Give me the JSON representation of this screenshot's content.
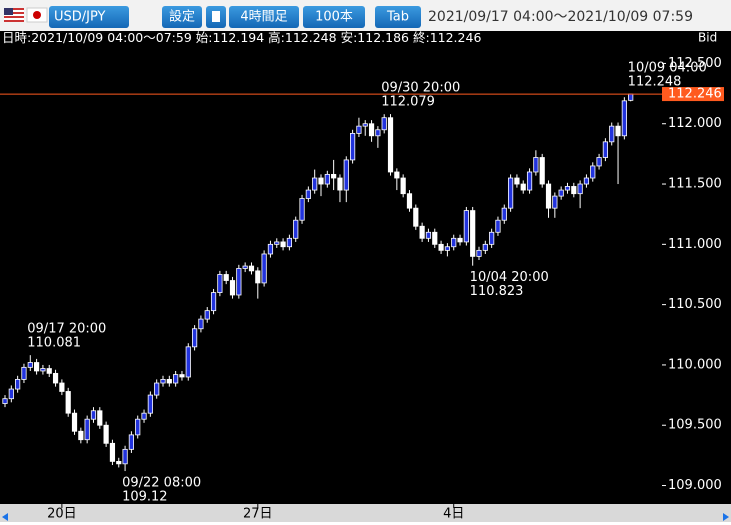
{
  "toolbar": {
    "pair": "USD/JPY",
    "settings": "設定",
    "timeframe": "4時間足",
    "count": "100本",
    "tab": "Tab",
    "range": "2021/09/17 04:00〜2021/10/09 07:59"
  },
  "info": {
    "datetime": "日時:2021/10/09 04:00〜07:59",
    "open_label": "始:",
    "high_label": "高:",
    "low_label": "安:",
    "close_label": "終:",
    "side": "Bid"
  },
  "chart_data": {
    "type": "candlestick",
    "categories": [
      null,
      null,
      null,
      null,
      null,
      null,
      null,
      null,
      null,
      "20日",
      null,
      null,
      null,
      null,
      null,
      null,
      null,
      null,
      null,
      null,
      null,
      null,
      null,
      null,
      null,
      null,
      null,
      null,
      null,
      null,
      null,
      null,
      null,
      null,
      null,
      null,
      null,
      null,
      null,
      null,
      "27日",
      null,
      null,
      null,
      null,
      null,
      null,
      null,
      null,
      null,
      null,
      null,
      null,
      null,
      null,
      null,
      null,
      null,
      null,
      null,
      null,
      null,
      null,
      null,
      null,
      null,
      null,
      null,
      null,
      null,
      null,
      "4日",
      null,
      null,
      null,
      null,
      null,
      null,
      null,
      null,
      null,
      null,
      null,
      null,
      null,
      null,
      null,
      null,
      null,
      null,
      null,
      null,
      null,
      null,
      null,
      null,
      null,
      null,
      null,
      null
    ],
    "open": [
      109.68,
      109.72,
      109.8,
      109.88,
      109.98,
      110.02,
      109.95,
      109.97,
      109.93,
      109.85,
      109.78,
      109.6,
      109.45,
      109.38,
      109.55,
      109.62,
      109.5,
      109.35,
      109.2,
      109.18,
      109.3,
      109.42,
      109.55,
      109.6,
      109.75,
      109.85,
      109.88,
      109.85,
      109.92,
      109.9,
      110.15,
      110.3,
      110.38,
      110.45,
      110.6,
      110.75,
      110.7,
      110.58,
      110.8,
      110.82,
      110.78,
      110.68,
      110.92,
      111.0,
      111.02,
      110.98,
      111.05,
      111.2,
      111.38,
      111.45,
      111.55,
      111.5,
      111.58,
      111.55,
      111.45,
      111.7,
      111.92,
      111.98,
      112.0,
      111.9,
      111.95,
      112.05,
      111.6,
      111.55,
      111.42,
      111.3,
      111.15,
      111.05,
      111.1,
      111.0,
      110.95,
      110.98,
      111.05,
      111.02,
      111.28,
      110.9,
      110.95,
      111.0,
      111.1,
      111.2,
      111.3,
      111.55,
      111.5,
      111.45,
      111.6,
      111.72,
      111.5,
      111.3,
      111.4,
      111.45,
      111.48,
      111.42,
      111.5,
      111.55,
      111.65,
      111.72,
      111.85,
      111.98,
      111.9,
      112.194
    ],
    "high": [
      109.75,
      109.83,
      109.91,
      110.01,
      110.081,
      110.05,
      110.0,
      110.0,
      109.96,
      109.88,
      109.81,
      109.63,
      109.48,
      109.58,
      109.65,
      109.65,
      109.53,
      109.38,
      109.23,
      109.33,
      109.45,
      109.58,
      109.63,
      109.78,
      109.88,
      109.91,
      109.91,
      109.95,
      109.95,
      110.18,
      110.33,
      110.41,
      110.48,
      110.63,
      110.78,
      110.78,
      110.73,
      110.83,
      110.85,
      110.85,
      110.81,
      110.95,
      111.03,
      111.05,
      111.05,
      111.08,
      111.23,
      111.41,
      111.48,
      111.62,
      111.58,
      111.61,
      111.7,
      111.58,
      111.73,
      111.95,
      112.05,
      112.03,
      112.03,
      111.98,
      112.079,
      112.08,
      111.63,
      111.58,
      111.45,
      111.33,
      111.18,
      111.13,
      111.13,
      111.03,
      111.01,
      111.08,
      111.08,
      111.31,
      111.31,
      110.98,
      111.03,
      111.13,
      111.23,
      111.33,
      111.58,
      111.58,
      111.53,
      111.63,
      111.78,
      111.75,
      111.53,
      111.43,
      111.48,
      111.51,
      111.51,
      111.53,
      111.58,
      111.68,
      111.75,
      111.88,
      112.01,
      112.01,
      112.22,
      112.248
    ],
    "low": [
      109.65,
      109.69,
      109.77,
      109.85,
      109.95,
      109.92,
      109.92,
      109.9,
      109.82,
      109.75,
      109.57,
      109.42,
      109.35,
      109.35,
      109.52,
      109.47,
      109.32,
      109.17,
      109.15,
      109.12,
      109.27,
      109.39,
      109.52,
      109.57,
      109.72,
      109.82,
      109.82,
      109.82,
      109.87,
      109.87,
      110.12,
      110.27,
      110.35,
      110.42,
      110.57,
      110.67,
      110.55,
      110.55,
      110.77,
      110.75,
      110.55,
      110.65,
      110.89,
      110.97,
      110.95,
      110.95,
      111.02,
      111.17,
      111.35,
      111.42,
      111.4,
      111.47,
      111.45,
      111.35,
      111.35,
      111.67,
      111.89,
      111.9,
      111.85,
      111.8,
      111.92,
      111.57,
      111.45,
      111.39,
      111.27,
      111.12,
      111.02,
      111.02,
      110.97,
      110.92,
      110.9,
      110.95,
      110.99,
      110.99,
      110.823,
      110.87,
      110.92,
      110.97,
      111.07,
      111.17,
      111.27,
      111.47,
      111.42,
      111.42,
      111.57,
      111.47,
      111.22,
      111.22,
      111.37,
      111.42,
      111.39,
      111.3,
      111.47,
      111.52,
      111.62,
      111.69,
      111.82,
      111.5,
      111.87,
      112.186
    ],
    "close": [
      109.72,
      109.8,
      109.88,
      109.98,
      110.02,
      109.95,
      109.97,
      109.93,
      109.85,
      109.78,
      109.6,
      109.45,
      109.38,
      109.55,
      109.62,
      109.5,
      109.35,
      109.2,
      109.18,
      109.3,
      109.42,
      109.55,
      109.6,
      109.75,
      109.85,
      109.88,
      109.85,
      109.92,
      109.9,
      110.15,
      110.3,
      110.38,
      110.45,
      110.6,
      110.75,
      110.7,
      110.58,
      110.8,
      110.82,
      110.78,
      110.68,
      110.92,
      111.0,
      111.02,
      110.98,
      111.05,
      111.2,
      111.38,
      111.45,
      111.55,
      111.5,
      111.58,
      111.55,
      111.45,
      111.7,
      111.92,
      111.98,
      112.0,
      111.9,
      111.95,
      112.05,
      111.6,
      111.55,
      111.42,
      111.3,
      111.15,
      111.05,
      111.1,
      111.0,
      110.95,
      110.98,
      111.05,
      111.02,
      111.28,
      110.9,
      110.95,
      111.0,
      111.1,
      111.2,
      111.3,
      111.55,
      111.5,
      111.45,
      111.6,
      111.72,
      111.5,
      111.3,
      111.4,
      111.45,
      111.48,
      111.42,
      111.5,
      111.55,
      111.65,
      111.72,
      111.85,
      111.98,
      111.9,
      112.19,
      112.246
    ],
    "up_color": "#2233dd",
    "down_color": "#ffffff",
    "last_color": "#ff5a1f",
    "ylim": [
      108.88,
      112.57
    ],
    "yticks": [
      {
        "value": 109,
        "label": "109.000"
      },
      {
        "value": 109.5,
        "label": "109.500"
      },
      {
        "value": 110,
        "label": "110.000"
      },
      {
        "value": 110.5,
        "label": "110.500"
      },
      {
        "value": 111,
        "label": "111.000"
      },
      {
        "value": 111.5,
        "label": "111.500"
      },
      {
        "value": 112,
        "label": "112.000"
      },
      {
        "value": 112.5,
        "label": "112.500"
      }
    ],
    "annotations": [
      {
        "text": "09/17 20:00",
        "value": 110.081
      },
      {
        "text": "09/22 08:00",
        "value": 109.12
      },
      {
        "text": "09/30 20:00",
        "value": 112.079
      },
      {
        "text": "10/04 20:00",
        "value": 110.823
      },
      {
        "text": "10/09 04:00",
        "value": 112.248
      }
    ],
    "grid": false
  }
}
